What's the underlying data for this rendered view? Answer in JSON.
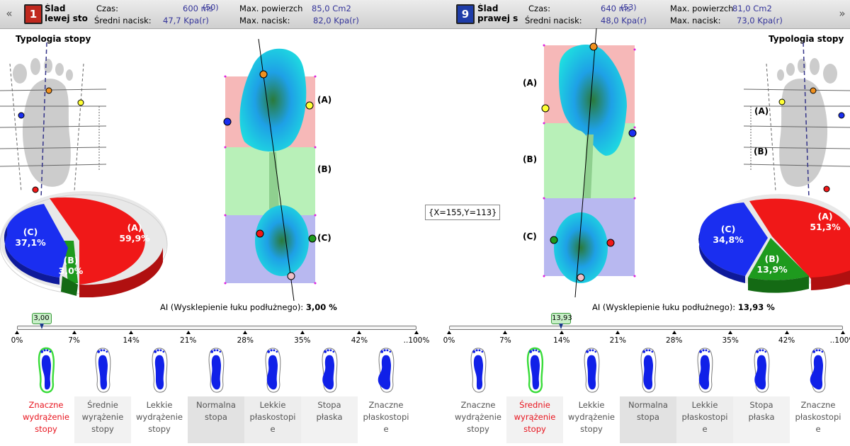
{
  "left": {
    "number": "1",
    "title_line1": "Ślad",
    "title_line2": "lewej sto",
    "czas_label": "Czas:",
    "czas_value": "600 ms",
    "czas_count": "(50)",
    "nacisk_label": "Średni nacisk:",
    "nacisk_value": "47,7 Kpa(r)",
    "maxpow_label": "Max. powierzch",
    "maxpow_value": "85,0 Cm2",
    "maxnac_label": "Max. nacisk:",
    "maxnac_value": "82,0 Kpa(r)",
    "typology_title": "Typologia stopy",
    "pie": {
      "A_label": "(A)",
      "A_value": "59,9%",
      "B_label": "(B)",
      "B_value": "3,0%",
      "C_label": "(C)",
      "C_value": "37,1%"
    },
    "zones": {
      "A": "(A)",
      "B": "(B)",
      "C": "(C)"
    },
    "ai_label": "AI (Wysklepienie łuku podłużnego):",
    "ai_value": "3,00 %",
    "marker": "3,00",
    "marker_percent": 3.0,
    "active_type": 0
  },
  "right": {
    "number": "9",
    "title_line1": "Ślad",
    "title_line2": "prawej s",
    "czas_label": "Czas:",
    "czas_value": "640 ms",
    "czas_count": "(53)",
    "nacisk_label": "Średni nacisk:",
    "nacisk_value": "48,0 Kpa(r)",
    "maxpow_label": "Max. powierzch",
    "maxpow_value": "81,0 Cm2",
    "maxnac_label": "Max. nacisk:",
    "maxnac_value": "73,0 Kpa(r)",
    "typology_title": "Typologia stopy",
    "pie": {
      "A_label": "(A)",
      "A_value": "51,3%",
      "B_label": "(B)",
      "B_value": "13,9%",
      "C_label": "(C)",
      "C_value": "34,8%"
    },
    "zones": {
      "A": "(A)",
      "B": "(B)",
      "C": "(C)"
    },
    "sketch_labels": {
      "A": "(A)",
      "B": "(B)"
    },
    "ai_label": "AI (Wysklepienie łuku podłużnego):",
    "ai_value": "13,93 %",
    "marker": "13,93",
    "marker_percent": 13.93,
    "active_type": 1
  },
  "coords": "{X=155,Y=113}",
  "scale_ticks": [
    "0%",
    "7%",
    "14%",
    "21%",
    "28%",
    "35%",
    "42%",
    "..100%"
  ],
  "foot_types": [
    [
      "Znaczne",
      "wydrążenie",
      "stopy"
    ],
    [
      "Średnie",
      "wyrążenie",
      "stopy"
    ],
    [
      "Lekkie",
      "wydrążenie",
      "stopy"
    ],
    [
      "Normalna",
      "stopa"
    ],
    [
      "Lekkie",
      "płaskostopi",
      "e"
    ],
    [
      "Stopa",
      "płaska"
    ],
    [
      "Znaczne",
      "płaskostopi",
      "e"
    ]
  ],
  "colors": {
    "zoneA": "#f6b8b8",
    "zoneB": "#b8f0b8",
    "zoneC": "#b8b8f0",
    "pieA": "#f01818",
    "pieB": "#1e9a1e",
    "pieC": "#1a2ef0",
    "active": "#e8141e",
    "badgeLeft": "#c0281e",
    "badgeRight": "#1e3ca8"
  }
}
